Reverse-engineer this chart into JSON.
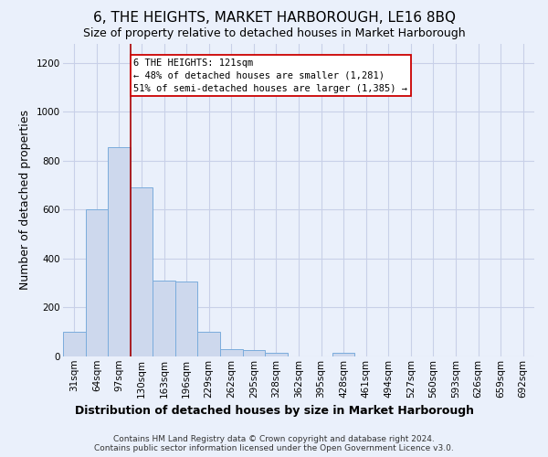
{
  "title": "6, THE HEIGHTS, MARKET HARBOROUGH, LE16 8BQ",
  "subtitle": "Size of property relative to detached houses in Market Harborough",
  "xlabel": "Distribution of detached houses by size in Market Harborough",
  "ylabel": "Number of detached properties",
  "footnote1": "Contains HM Land Registry data © Crown copyright and database right 2024.",
  "footnote2": "Contains public sector information licensed under the Open Government Licence v3.0.",
  "categories": [
    "31sqm",
    "64sqm",
    "97sqm",
    "130sqm",
    "163sqm",
    "196sqm",
    "229sqm",
    "262sqm",
    "295sqm",
    "328sqm",
    "362sqm",
    "395sqm",
    "428sqm",
    "461sqm",
    "494sqm",
    "527sqm",
    "560sqm",
    "593sqm",
    "626sqm",
    "659sqm",
    "692sqm"
  ],
  "values": [
    100,
    600,
    855,
    690,
    310,
    305,
    100,
    30,
    25,
    15,
    0,
    0,
    15,
    0,
    0,
    0,
    0,
    0,
    0,
    0,
    0
  ],
  "bar_color": "#cdd8ed",
  "bar_edge_color": "#7aacdc",
  "property_label": "6 THE HEIGHTS: 121sqm",
  "annotation_line1": "← 48% of detached houses are smaller (1,281)",
  "annotation_line2": "51% of semi-detached houses are larger (1,385) →",
  "vline_color": "#aa0000",
  "vline_x_index": 2.5,
  "annotation_box_facecolor": "#ffffff",
  "annotation_box_edgecolor": "#cc0000",
  "ylim": [
    0,
    1280
  ],
  "yticks": [
    0,
    200,
    400,
    600,
    800,
    1000,
    1200
  ],
  "bg_color": "#eaf0fb",
  "grid_color": "#c8d0e8",
  "title_fontsize": 11,
  "subtitle_fontsize": 9,
  "ylabel_fontsize": 9,
  "xlabel_fontsize": 9,
  "tick_fontsize": 7.5,
  "footnote_fontsize": 6.5
}
